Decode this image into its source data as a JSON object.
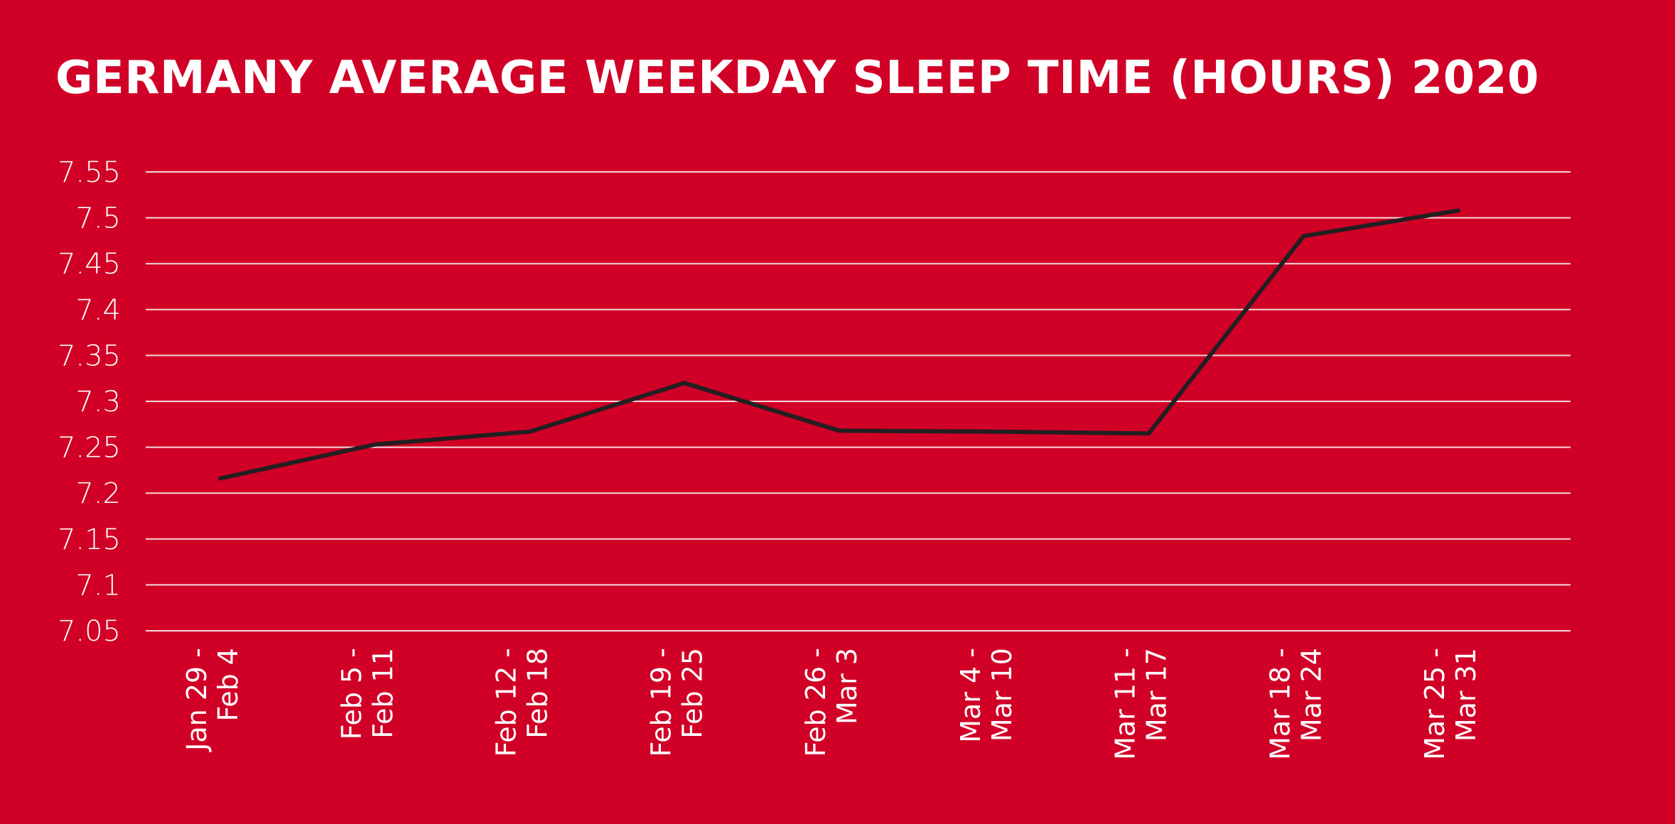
{
  "chart_data": {
    "type": "line",
    "title": "GERMANY AVERAGE WEEKDAY SLEEP TIME (HOURS) 2020",
    "xlabel": "",
    "ylabel": "",
    "ylim": [
      7.05,
      7.55
    ],
    "yticks": [
      "7.55",
      "7.5",
      "7.45",
      "7.4",
      "7.35",
      "7.3",
      "7.25",
      "7.2",
      "7.15",
      "7.1",
      "7.05"
    ],
    "grid": true,
    "legend": "none",
    "categories": [
      [
        "Jan 29 -",
        "Feb 4"
      ],
      [
        "Feb 5 -",
        "Feb 11"
      ],
      [
        "Feb 12 -",
        "Feb 18"
      ],
      [
        "Feb 19 -",
        "Feb 25"
      ],
      [
        "Feb 26 -",
        "Mar 3"
      ],
      [
        "Mar 4 -",
        "Mar 10"
      ],
      [
        "Mar 11 -",
        "Mar 17"
      ],
      [
        "Mar 18 -",
        "Mar 24"
      ],
      [
        "Mar 25 -",
        "Mar 31"
      ]
    ],
    "series": [
      {
        "values": [
          7.216,
          7.253,
          7.267,
          7.32,
          7.268,
          7.267,
          7.265,
          7.48,
          7.508
        ]
      }
    ],
    "colors": {
      "background": "#d10027",
      "line": "#231f20",
      "grid": "#f2d9dd",
      "text": "#ffffff"
    }
  }
}
